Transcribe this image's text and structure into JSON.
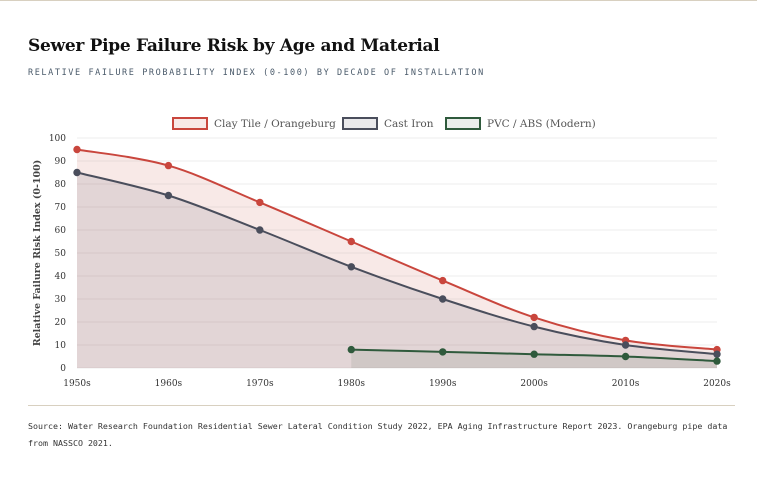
{
  "title": "Sewer Pipe Failure Risk by Age and Material",
  "subtitle": "RELATIVE FAILURE PROBABILITY INDEX (0-100) BY DECADE OF INSTALLATION",
  "source": "Source: Water Research Foundation Residential Sewer Lateral Condition Study 2022, EPA Aging Infrastructure Report 2023. Orangeburg pipe data from NASSCO 2021.",
  "chart_data": {
    "type": "line",
    "categories": [
      "1950s",
      "1960s",
      "1970s",
      "1980s",
      "1990s",
      "2000s",
      "2010s",
      "2020s"
    ],
    "ylabel": "Relative Failure Risk Index (0-100)",
    "xlabel": "",
    "ylim": [
      0,
      100
    ],
    "yticks": [
      0,
      10,
      20,
      30,
      40,
      50,
      60,
      70,
      80,
      90,
      100
    ],
    "legend": "top-center",
    "grid": true,
    "series": [
      {
        "name": "Clay Tile / Orangeburg",
        "color": "#c9463d",
        "fill": "rgba(201,70,61,0.12)",
        "values": [
          95,
          88,
          72,
          55,
          38,
          22,
          12,
          8
        ]
      },
      {
        "name": "Cast Iron",
        "color": "#4a4e5c",
        "fill": "rgba(74,78,92,0.12)",
        "values": [
          85,
          75,
          60,
          44,
          30,
          18,
          10,
          6
        ]
      },
      {
        "name": "PVC / ABS (Modern)",
        "color": "#2f5a3c",
        "fill": "rgba(47,90,60,0.1)",
        "values": [
          null,
          null,
          null,
          8,
          7,
          6,
          5,
          3
        ]
      }
    ]
  }
}
